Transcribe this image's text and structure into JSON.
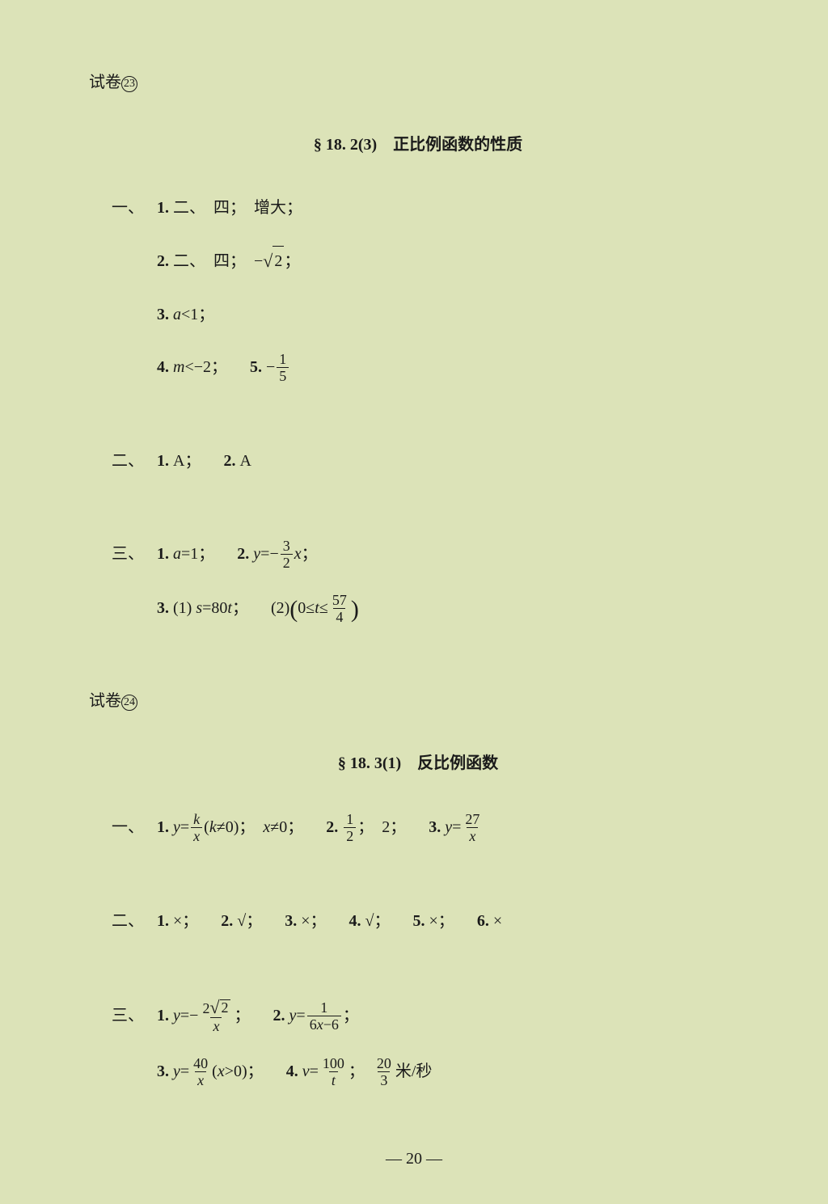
{
  "paper23": {
    "header_prefix": "试卷",
    "header_num": "23",
    "title": "§ 18. 2(3)　正比例函数的性质",
    "sec1": {
      "label": "一、",
      "q1_num": "1.",
      "q1_a": "二、",
      "q1_b": "四；",
      "q1_c": "增大；",
      "q2_num": "2.",
      "q2_a": "二、",
      "q2_b": "四；",
      "q2_neg": "−",
      "q2_sqrt": "2",
      "q2_semi": "；",
      "q3_num": "3.",
      "q3_var": "a",
      "q3_rel": "<1；",
      "q4_num": "4.",
      "q4_var": "m",
      "q4_rel": "<−2；",
      "q5_num": "5.",
      "q5_neg": "−",
      "q5_frac_num": "1",
      "q5_frac_den": "5"
    },
    "sec2": {
      "label": "二、",
      "q1_num": "1.",
      "q1_ans": "A；",
      "q2_num": "2.",
      "q2_ans": "A"
    },
    "sec3": {
      "label": "三、",
      "q1_num": "1.",
      "q1_var": "a",
      "q1_eq": "=1；",
      "q2_num": "2.",
      "q2_lhs": "y",
      "q2_eq": "=−",
      "q2_frac_num": "3",
      "q2_frac_den": "2",
      "q2_rhs": "x",
      "q2_semi": "；",
      "q3_num": "3.",
      "q3_p1": "(1)",
      "q3_s": "s",
      "q3_eq": "=80",
      "q3_t": "t",
      "q3_semi": "；",
      "q3_p2": "(2)",
      "q3_lp": "(",
      "q3_zero": "0≤",
      "q3_t2": "t",
      "q3_le": "≤",
      "q3_frac_num": "57",
      "q3_frac_den": "4",
      "q3_rp": ")"
    }
  },
  "paper24": {
    "header_prefix": "试卷",
    "header_num": "24",
    "title": "§ 18. 3(1)　反比例函数",
    "sec1": {
      "label": "一、",
      "q1_num": "1.",
      "q1_y": "y",
      "q1_eq": "=",
      "q1_k": "k",
      "q1_x": "x",
      "q1_cond_l": "(",
      "q1_kvar": "k",
      "q1_cond_r": "≠0)；",
      "q1_xvar": "x",
      "q1_xcond": "≠0；",
      "q2_num": "2.",
      "q2_frac_num": "1",
      "q2_frac_den": "2",
      "q2_semi": "；",
      "q2_two": "2；",
      "q3_num": "3.",
      "q3_y": "y",
      "q3_eq": "=",
      "q3_frac_num": "27",
      "q3_frac_den": "x"
    },
    "sec2": {
      "label": "二、",
      "q1_num": "1.",
      "q1_ans": "×；",
      "q2_num": "2.",
      "q2_ans": "√；",
      "q3_num": "3.",
      "q3_ans": "×；",
      "q4_num": "4.",
      "q4_ans": "√；",
      "q5_num": "5.",
      "q5_ans": "×；",
      "q6_num": "6.",
      "q6_ans": "×"
    },
    "sec3": {
      "label": "三、",
      "q1_num": "1.",
      "q1_y": "y",
      "q1_eq": "=−",
      "q1_num_2": "2",
      "q1_sqrt": "2",
      "q1_den": "x",
      "q1_semi": "；",
      "q2_num": "2.",
      "q2_y": "y",
      "q2_eq": "=",
      "q2_frac_num": "1",
      "q2_frac_den_a": "6",
      "q2_frac_den_x": "x",
      "q2_frac_den_b": "−6",
      "q2_semi": "；",
      "q3_num": "3.",
      "q3_y": "y",
      "q3_eq": "=",
      "q3_frac_num": "40",
      "q3_frac_den": "x",
      "q3_cond_l": "(",
      "q3_x": "x",
      "q3_cond_r": ">0)；",
      "q4_num": "4.",
      "q4_v": "v",
      "q4_eq": "=",
      "q4_frac_num": "100",
      "q4_frac_den": "t",
      "q4_semi": "；",
      "q4_ans_num": "20",
      "q4_ans_den": "3",
      "q4_unit": "米/秒"
    }
  },
  "page_number": "— 20 —"
}
